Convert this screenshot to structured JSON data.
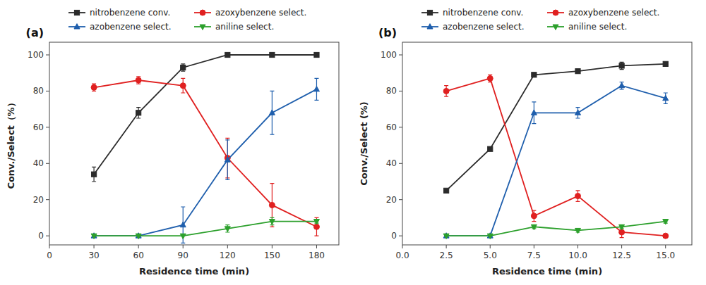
{
  "chart_data": [
    {
      "type": "line",
      "title": "(a)",
      "x_label": "Residence time (min)",
      "y_label": "Conv./Select（%）",
      "xlim": [
        0,
        195
      ],
      "ylim": [
        -5,
        107
      ],
      "xticks": [
        0,
        30,
        60,
        90,
        120,
        150,
        180
      ],
      "yticks": [
        0,
        20,
        40,
        60,
        80,
        100
      ],
      "legend": "top",
      "series": [
        {
          "name": "nitrobenzene conv.",
          "color": "#2b2b2b",
          "marker": "square",
          "x": [
            30,
            60,
            90,
            120,
            150,
            180
          ],
          "values": [
            34,
            68,
            93,
            100,
            100,
            100
          ],
          "errors": [
            4,
            3,
            2,
            0,
            0,
            0
          ]
        },
        {
          "name": "azoxybenzene select.",
          "color": "#e02020",
          "marker": "circle",
          "x": [
            30,
            60,
            90,
            120,
            150,
            180
          ],
          "values": [
            82,
            86,
            83,
            43,
            17,
            5
          ],
          "errors": [
            2,
            2,
            4,
            11,
            12,
            5
          ]
        },
        {
          "name": "azobenzene select.",
          "color": "#1f5fad",
          "marker": "triangle-up",
          "x": [
            30,
            60,
            90,
            120,
            150,
            180
          ],
          "values": [
            0,
            0,
            6,
            42,
            68,
            81
          ],
          "errors": [
            0,
            0,
            10,
            11,
            12,
            6
          ]
        },
        {
          "name": "aniline select.",
          "color": "#2ca02c",
          "marker": "triangle-down",
          "x": [
            30,
            60,
            90,
            120,
            150,
            180
          ],
          "values": [
            0,
            0,
            0,
            4,
            8,
            8
          ],
          "errors": [
            0,
            0,
            0,
            2,
            2,
            1
          ]
        }
      ]
    },
    {
      "type": "line",
      "title": "(b)",
      "x_label": "Residence time (min)",
      "y_label": "Conv./Select (%)",
      "xlim": [
        0,
        16.5
      ],
      "ylim": [
        -5,
        107
      ],
      "xticks": [
        {
          "value": 0,
          "label": "0.0"
        },
        2.5,
        {
          "value": 5,
          "label": "5.0"
        },
        7.5,
        {
          "value": 10,
          "label": "10.0"
        },
        12.5,
        {
          "value": 15,
          "label": "15.0"
        }
      ],
      "yticks": [
        0,
        20,
        40,
        60,
        80,
        100
      ],
      "legend": "top",
      "series": [
        {
          "name": "nitrobenzene conv.",
          "color": "#2b2b2b",
          "marker": "square",
          "x": [
            2.5,
            5.0,
            7.5,
            10.0,
            12.5,
            15.0
          ],
          "values": [
            25,
            48,
            89,
            91,
            94,
            95
          ],
          "errors": [
            0,
            0,
            1,
            1,
            2,
            1
          ]
        },
        {
          "name": "azoxybenzene select.",
          "color": "#e02020",
          "marker": "circle",
          "x": [
            2.5,
            5.0,
            7.5,
            10.0,
            12.5,
            15.0
          ],
          "values": [
            80,
            87,
            11,
            22,
            2,
            0
          ],
          "errors": [
            3,
            2,
            3,
            3,
            3,
            0
          ]
        },
        {
          "name": "azobenzene select.",
          "color": "#1f5fad",
          "marker": "triangle-up",
          "x": [
            2.5,
            5.0,
            7.5,
            10.0,
            12.5,
            15.0
          ],
          "values": [
            0,
            0,
            68,
            68,
            83,
            76
          ],
          "errors": [
            0,
            0,
            6,
            3,
            2,
            3
          ]
        },
        {
          "name": "aniline select.",
          "color": "#2ca02c",
          "marker": "triangle-down",
          "x": [
            2.5,
            5.0,
            7.5,
            10.0,
            12.5,
            15.0
          ],
          "values": [
            0,
            0,
            5,
            3,
            5,
            8
          ],
          "errors": [
            0,
            0,
            1,
            1,
            1,
            1
          ]
        }
      ]
    }
  ]
}
